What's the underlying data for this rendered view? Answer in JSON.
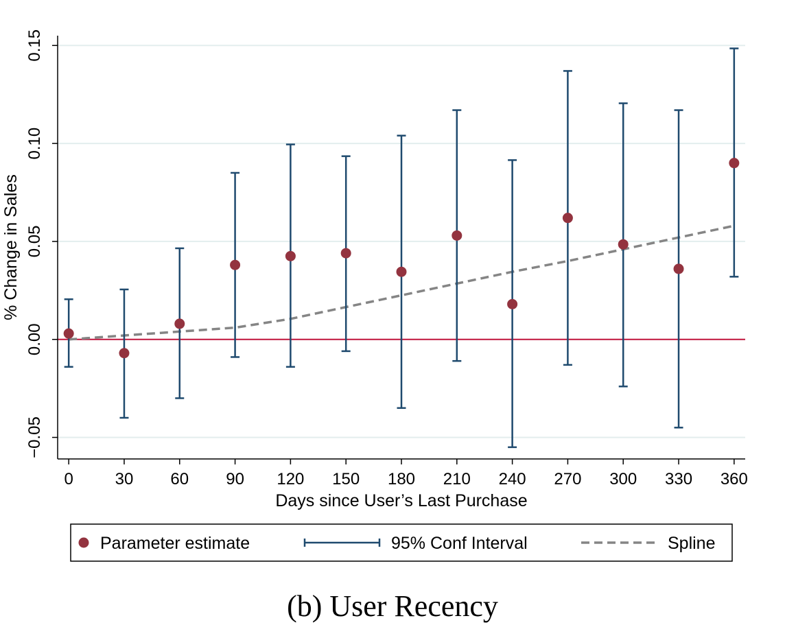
{
  "chart_data": {
    "type": "scatter",
    "x": [
      0,
      30,
      60,
      90,
      120,
      150,
      180,
      210,
      240,
      270,
      300,
      330,
      360
    ],
    "series": [
      {
        "name": "Parameter estimate",
        "kind": "point",
        "color": "#93333f",
        "values": [
          0.003,
          -0.007,
          0.008,
          0.038,
          0.0425,
          0.044,
          0.0345,
          0.053,
          0.018,
          0.062,
          0.0485,
          0.036,
          0.09
        ]
      },
      {
        "name": "95% Conf Interval",
        "kind": "errorbar",
        "color": "#1f4a6e",
        "low": [
          -0.014,
          -0.04,
          -0.03,
          -0.009,
          -0.014,
          -0.006,
          -0.035,
          -0.011,
          -0.055,
          -0.013,
          -0.024,
          -0.045,
          0.032
        ],
        "high": [
          0.0205,
          0.0255,
          0.0465,
          0.085,
          0.0995,
          0.0935,
          0.104,
          0.117,
          0.0915,
          0.137,
          0.1205,
          0.117,
          0.1485
        ]
      },
      {
        "name": "Spline",
        "kind": "dashed-line",
        "color": "#858585",
        "values": [
          0.0,
          0.002,
          0.004,
          0.006,
          0.0105,
          0.0165,
          0.0225,
          0.0285,
          0.0345,
          0.04,
          0.046,
          0.052,
          0.058
        ]
      }
    ],
    "reference_line": {
      "y": 0,
      "color": "#c0143c"
    },
    "xlabel": "Days since User’s Last Purchase",
    "ylabel": "% Change in Sales",
    "xticks": [
      "0",
      "30",
      "60",
      "90",
      "120",
      "150",
      "180",
      "210",
      "240",
      "270",
      "300",
      "330",
      "360"
    ],
    "yticks": [
      "−0.05",
      "0.00",
      "0.05",
      "0.10",
      "0.15"
    ],
    "ylim": [
      -0.061,
      0.155
    ],
    "xlim": [
      -6,
      366
    ],
    "grid": "horizontal",
    "legend_position": "bottom"
  },
  "caption": "(b) User Recency"
}
